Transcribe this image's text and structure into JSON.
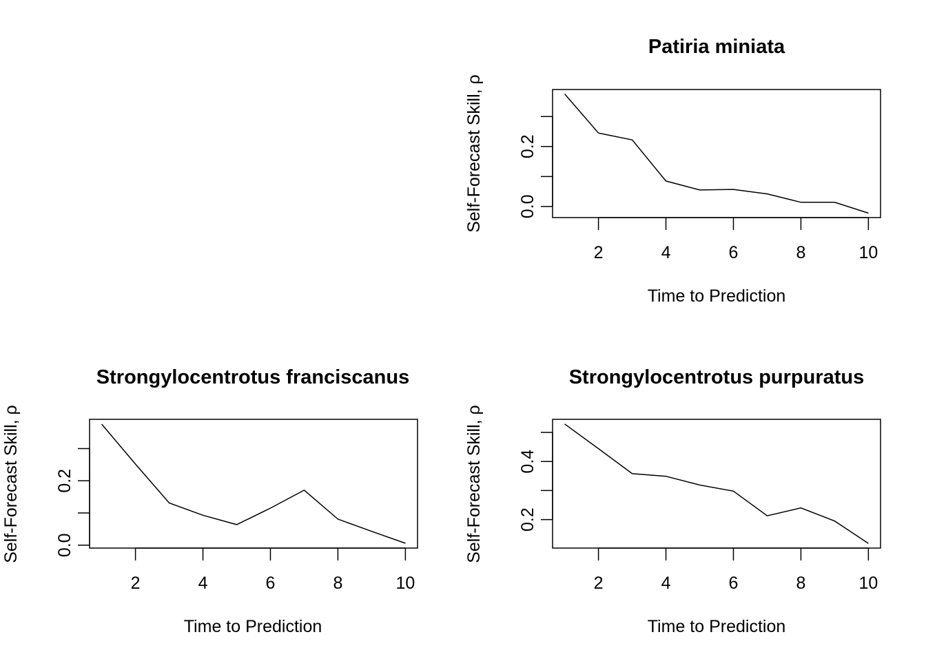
{
  "chart_data": [
    {
      "type": "line",
      "title": "Patiria miniata",
      "xlabel": "Time to Prediction",
      "ylabel": "Self-Forecast Skill, ρ",
      "x": [
        1,
        2,
        3,
        4,
        5,
        6,
        7,
        8,
        9,
        10
      ],
      "values": [
        0.375,
        0.245,
        0.222,
        0.085,
        0.055,
        0.057,
        0.042,
        0.014,
        0.014,
        -0.022
      ],
      "xlim": [
        0.64,
        10.36
      ],
      "ylim": [
        -0.037,
        0.39
      ],
      "xticks": [
        2,
        4,
        6,
        8,
        10
      ],
      "xtick_labels": [
        "2",
        "4",
        "6",
        "8",
        "10"
      ],
      "yticks": [
        0,
        0.1,
        0.2,
        0.3
      ],
      "ytick_labels": [
        "0.0",
        "",
        "0.2",
        ""
      ],
      "grid": false,
      "legend": "none"
    },
    {
      "type": "line",
      "title": "Strongylocentrotus franciscanus",
      "xlabel": "Time to Prediction",
      "ylabel": "Self-Forecast Skill, ρ",
      "x": [
        1,
        2,
        3,
        4,
        5,
        6,
        7,
        8,
        9,
        10
      ],
      "values": [
        0.376,
        0.252,
        0.131,
        0.093,
        0.064,
        0.115,
        0.171,
        0.081,
        0.043,
        0.006
      ],
      "xlim": [
        0.64,
        10.36
      ],
      "ylim": [
        -0.009,
        0.391
      ],
      "xticks": [
        2,
        4,
        6,
        8,
        10
      ],
      "xtick_labels": [
        "2",
        "4",
        "6",
        "8",
        "10"
      ],
      "yticks": [
        0,
        0.1,
        0.2,
        0.3
      ],
      "ytick_labels": [
        "0.0",
        "",
        "0.2",
        ""
      ],
      "grid": false,
      "legend": "none"
    },
    {
      "type": "line",
      "title": "Strongylocentrotus purpuratus",
      "xlabel": "Time to Prediction",
      "ylabel": "Self-Forecast Skill, ρ",
      "x": [
        1,
        2,
        3,
        4,
        5,
        6,
        7,
        8,
        9,
        10
      ],
      "values": [
        0.529,
        0.444,
        0.358,
        0.349,
        0.319,
        0.298,
        0.213,
        0.24,
        0.195,
        0.118
      ],
      "xlim": [
        0.64,
        10.36
      ],
      "ylim": [
        0.102,
        0.545
      ],
      "xticks": [
        2,
        4,
        6,
        8,
        10
      ],
      "xtick_labels": [
        "2",
        "4",
        "6",
        "8",
        "10"
      ],
      "yticks": [
        0.2,
        0.3,
        0.4,
        0.5
      ],
      "ytick_labels": [
        "0.2",
        "",
        "0.4",
        ""
      ],
      "grid": false,
      "legend": "none"
    }
  ]
}
